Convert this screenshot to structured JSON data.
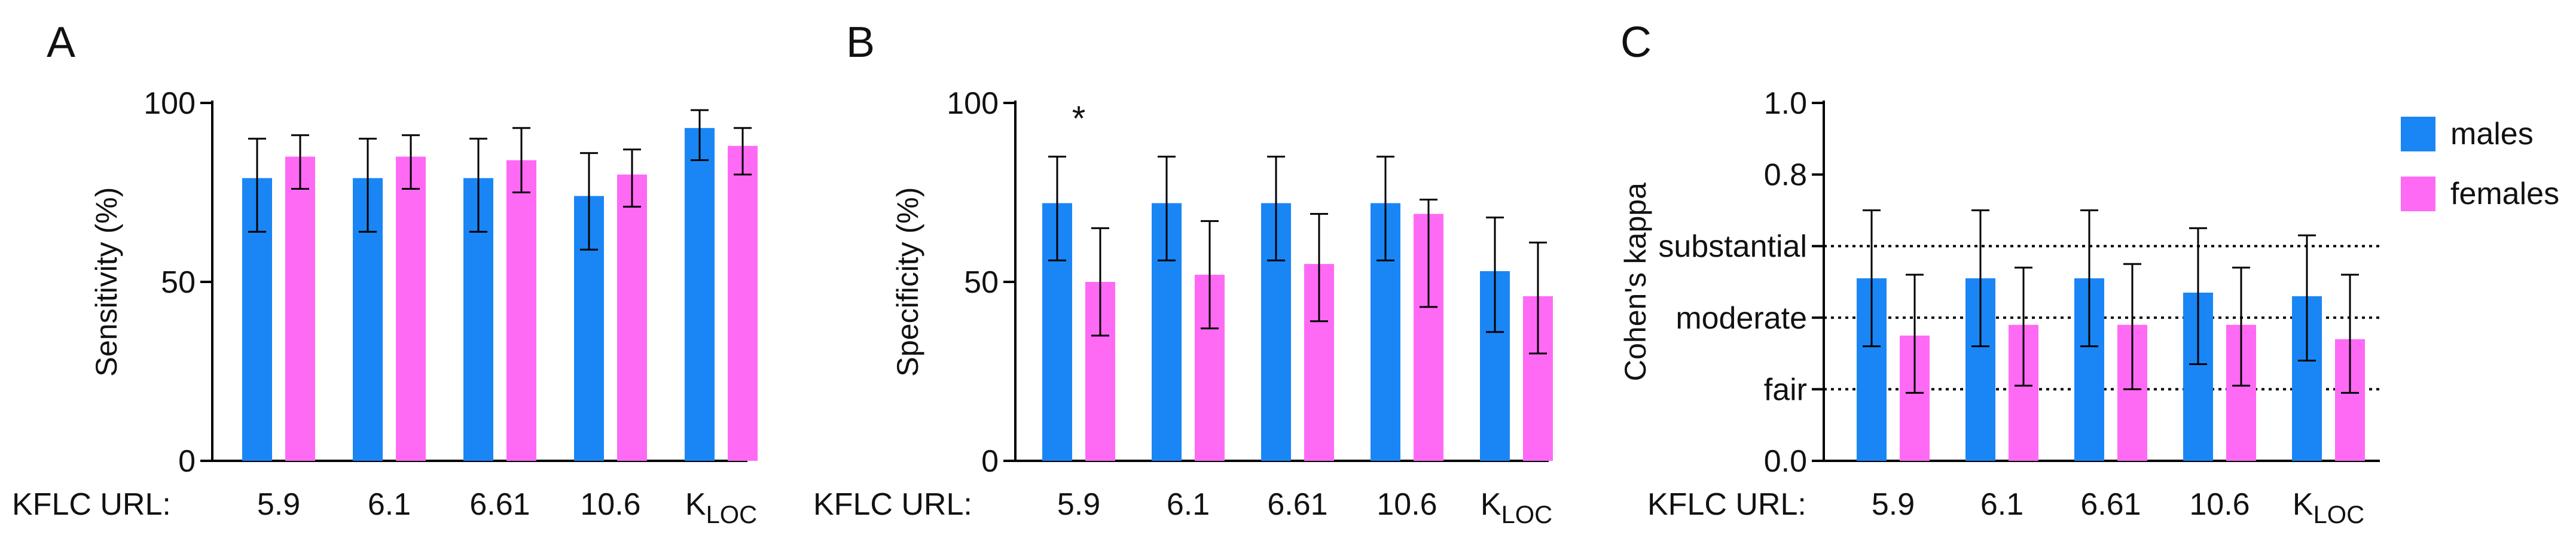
{
  "colors": {
    "males": "#1A86F5",
    "females": "#FF6AF5",
    "axis": "#000000"
  },
  "xaxis_row_label": "KFLC URL:",
  "chart_data": [
    {
      "panel": "A",
      "type": "bar",
      "ylabel": "Sensitivity (%)",
      "ylim": [
        0,
        100
      ],
      "yticks": [
        0,
        50,
        100
      ],
      "categories": [
        "5.9",
        "6.1",
        "6.61",
        "10.6",
        "K"
      ],
      "last_category_subscript": "LOC",
      "series": [
        {
          "name": "males",
          "values": [
            79,
            79,
            79,
            74,
            93
          ],
          "err_low": [
            64,
            64,
            64,
            59,
            84
          ],
          "err_high": [
            90,
            90,
            90,
            86,
            98
          ]
        },
        {
          "name": "females",
          "values": [
            85,
            85,
            84,
            80,
            88
          ],
          "err_low": [
            76,
            76,
            75,
            71,
            80
          ],
          "err_high": [
            91,
            91,
            93,
            87,
            93
          ]
        }
      ]
    },
    {
      "panel": "B",
      "type": "bar",
      "ylabel": "Specificity (%)",
      "ylim": [
        0,
        100
      ],
      "yticks": [
        0,
        50,
        100
      ],
      "categories": [
        "5.9",
        "6.1",
        "6.61",
        "10.6",
        "K"
      ],
      "last_category_subscript": "LOC",
      "annotation": {
        "text": "*",
        "category_index": 0
      },
      "series": [
        {
          "name": "males",
          "values": [
            72,
            72,
            72,
            72,
            53
          ],
          "err_low": [
            56,
            56,
            56,
            56,
            36
          ],
          "err_high": [
            85,
            85,
            85,
            85,
            68
          ]
        },
        {
          "name": "females",
          "values": [
            50,
            52,
            55,
            69,
            46
          ],
          "err_low": [
            35,
            37,
            39,
            43,
            30
          ],
          "err_high": [
            65,
            67,
            69,
            73,
            61
          ]
        }
      ]
    },
    {
      "panel": "C",
      "type": "bar",
      "ylabel": "Cohen's kappa",
      "ylim": [
        0,
        1.0
      ],
      "yticks": [
        0.0,
        0.2,
        0.4,
        0.6,
        0.8,
        1.0
      ],
      "ytick_labels": [
        "0.0",
        "fair",
        "moderate",
        "substantial",
        "0.8",
        "1.0"
      ],
      "reference_lines": [
        {
          "y": 0.2,
          "label": "fair"
        },
        {
          "y": 0.4,
          "label": "moderate"
        },
        {
          "y": 0.6,
          "label": "substantial"
        }
      ],
      "categories": [
        "5.9",
        "6.1",
        "6.61",
        "10.6",
        "K"
      ],
      "last_category_subscript": "LOC",
      "legend": {
        "position": "top-right",
        "entries": [
          "males",
          "females"
        ]
      },
      "series": [
        {
          "name": "males",
          "values": [
            0.51,
            0.51,
            0.51,
            0.47,
            0.46
          ],
          "err_low": [
            0.32,
            0.32,
            0.32,
            0.27,
            0.28
          ],
          "err_high": [
            0.7,
            0.7,
            0.7,
            0.65,
            0.63
          ]
        },
        {
          "name": "females",
          "values": [
            0.35,
            0.38,
            0.38,
            0.38,
            0.34
          ],
          "err_low": [
            0.19,
            0.21,
            0.2,
            0.21,
            0.19
          ],
          "err_high": [
            0.52,
            0.54,
            0.55,
            0.54,
            0.52
          ]
        }
      ]
    }
  ]
}
